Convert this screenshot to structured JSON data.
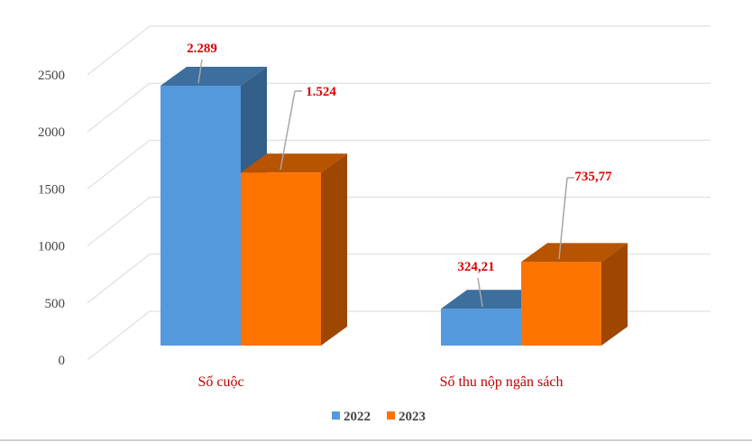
{
  "chart_data": {
    "type": "bar",
    "style": "3d-clustered-column",
    "categories": [
      "Số cuộc",
      "Số thu nộp ngân sách"
    ],
    "series": [
      {
        "name": "2022",
        "values": [
          2289,
          324.21
        ],
        "labels": [
          "2.289",
          "324,21"
        ],
        "color": "#5399DB"
      },
      {
        "name": "2023",
        "values": [
          1524,
          735.77
        ],
        "labels": [
          "1.524",
          "735,77"
        ],
        "color": "#FF7300"
      }
    ],
    "y_ticks": [
      "0",
      "500",
      "1000",
      "1500",
      "2000",
      "2500"
    ],
    "ylim": [
      0,
      2500
    ],
    "grid": true,
    "legend_position": "bottom",
    "data_label_color": "#e00000",
    "category_label_color": "#c00000"
  }
}
